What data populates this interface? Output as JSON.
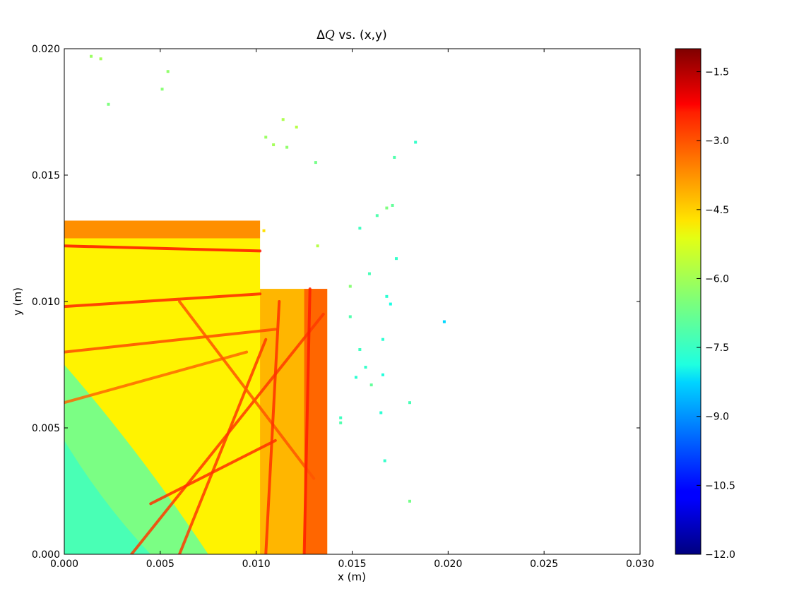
{
  "chart_data": {
    "type": "scatter",
    "title_prefix": "Δ",
    "title_symbol": "Q",
    "title_suffix": " vs. (x,y)",
    "xlabel": "x (m)",
    "ylabel": "y (m)",
    "xlim": [
      0.0,
      0.03
    ],
    "ylim": [
      0.0,
      0.02
    ],
    "xticks": [
      "0.000",
      "0.005",
      "0.010",
      "0.015",
      "0.020",
      "0.025",
      "0.030"
    ],
    "yticks": [
      "0.000",
      "0.005",
      "0.010",
      "0.015",
      "0.020"
    ],
    "colorbar": {
      "colormap": "jet",
      "range": [
        -12.0,
        -1.0
      ],
      "ticks": [
        "−1.5",
        "−3.0",
        "−4.5",
        "−6.0",
        "−7.5",
        "−9.0",
        "−10.5",
        "−12.0"
      ],
      "tick_values": [
        -1.5,
        -3.0,
        -4.5,
        -6.0,
        -7.5,
        -9.0,
        -10.5,
        -12.0
      ]
    },
    "grid": false,
    "stable_region": {
      "x_top_edge": 0.0102,
      "y_top": 0.0132,
      "x_right_edge": 0.0137,
      "y_step": 0.0105,
      "typical_value": -5.0
    },
    "resonance_lines": [
      {
        "from": [
          0.0,
          0.0098
        ],
        "to": [
          0.0102,
          0.0103
        ],
        "value": -2.8
      },
      {
        "from": [
          0.0,
          0.0122
        ],
        "to": [
          0.0102,
          0.012
        ],
        "value": -2.6
      },
      {
        "from": [
          0.0,
          0.008
        ],
        "to": [
          0.011,
          0.0089
        ],
        "value": -3.2
      },
      {
        "from": [
          0.0,
          0.006
        ],
        "to": [
          0.0095,
          0.008
        ],
        "value": -3.5
      },
      {
        "from": [
          0.0035,
          0.0
        ],
        "to": [
          0.0135,
          0.0095
        ],
        "value": -3.0
      },
      {
        "from": [
          0.006,
          0.0
        ],
        "to": [
          0.0105,
          0.0085
        ],
        "value": -3.0
      },
      {
        "from": [
          0.0045,
          0.002
        ],
        "to": [
          0.011,
          0.0045
        ],
        "value": -2.9
      },
      {
        "from": [
          0.006,
          0.01
        ],
        "to": [
          0.013,
          0.003
        ],
        "value": -3.3
      },
      {
        "from": [
          0.0105,
          0.0
        ],
        "to": [
          0.0112,
          0.01
        ],
        "value": -2.9
      },
      {
        "from": [
          0.0125,
          0.0
        ],
        "to": [
          0.0128,
          0.0105
        ],
        "value": -2.7
      }
    ],
    "outlier_points": [
      {
        "x": 0.0014,
        "y": 0.0197,
        "v": -6.2
      },
      {
        "x": 0.0019,
        "y": 0.0196,
        "v": -6.1
      },
      {
        "x": 0.0054,
        "y": 0.0191,
        "v": -6.3
      },
      {
        "x": 0.0051,
        "y": 0.0184,
        "v": -6.4
      },
      {
        "x": 0.0023,
        "y": 0.0178,
        "v": -6.5
      },
      {
        "x": 0.0114,
        "y": 0.0172,
        "v": -6.0
      },
      {
        "x": 0.0121,
        "y": 0.0169,
        "v": -5.9
      },
      {
        "x": 0.0105,
        "y": 0.0165,
        "v": -6.2
      },
      {
        "x": 0.0109,
        "y": 0.0162,
        "v": -6.1
      },
      {
        "x": 0.0116,
        "y": 0.0161,
        "v": -6.3
      },
      {
        "x": 0.0183,
        "y": 0.0163,
        "v": -7.3
      },
      {
        "x": 0.0172,
        "y": 0.0157,
        "v": -7.0
      },
      {
        "x": 0.0131,
        "y": 0.0155,
        "v": -6.6
      },
      {
        "x": 0.0171,
        "y": 0.0138,
        "v": -6.8
      },
      {
        "x": 0.0168,
        "y": 0.0137,
        "v": -6.5
      },
      {
        "x": 0.0163,
        "y": 0.0134,
        "v": -7.0
      },
      {
        "x": 0.0154,
        "y": 0.0129,
        "v": -7.2
      },
      {
        "x": 0.0104,
        "y": 0.0128,
        "v": -4.8
      },
      {
        "x": 0.0132,
        "y": 0.0122,
        "v": -5.9
      },
      {
        "x": 0.0173,
        "y": 0.0117,
        "v": -7.3
      },
      {
        "x": 0.0159,
        "y": 0.0111,
        "v": -7.1
      },
      {
        "x": 0.0149,
        "y": 0.0106,
        "v": -6.4
      },
      {
        "x": 0.0168,
        "y": 0.0102,
        "v": -7.4
      },
      {
        "x": 0.017,
        "y": 0.0099,
        "v": -7.6
      },
      {
        "x": 0.0149,
        "y": 0.0094,
        "v": -7.0
      },
      {
        "x": 0.0198,
        "y": 0.0092,
        "v": -8.3
      },
      {
        "x": 0.0166,
        "y": 0.0085,
        "v": -7.4
      },
      {
        "x": 0.0154,
        "y": 0.0081,
        "v": -7.2
      },
      {
        "x": 0.0157,
        "y": 0.0074,
        "v": -7.3
      },
      {
        "x": 0.0166,
        "y": 0.0071,
        "v": -7.5
      },
      {
        "x": 0.0152,
        "y": 0.007,
        "v": -7.4
      },
      {
        "x": 0.016,
        "y": 0.0067,
        "v": -6.8
      },
      {
        "x": 0.018,
        "y": 0.006,
        "v": -7.1
      },
      {
        "x": 0.0165,
        "y": 0.0056,
        "v": -7.4
      },
      {
        "x": 0.0144,
        "y": 0.0054,
        "v": -7.2
      },
      {
        "x": 0.0144,
        "y": 0.0052,
        "v": -7.0
      },
      {
        "x": 0.0167,
        "y": 0.0037,
        "v": -7.3
      },
      {
        "x": 0.018,
        "y": 0.0021,
        "v": -6.6
      }
    ]
  }
}
